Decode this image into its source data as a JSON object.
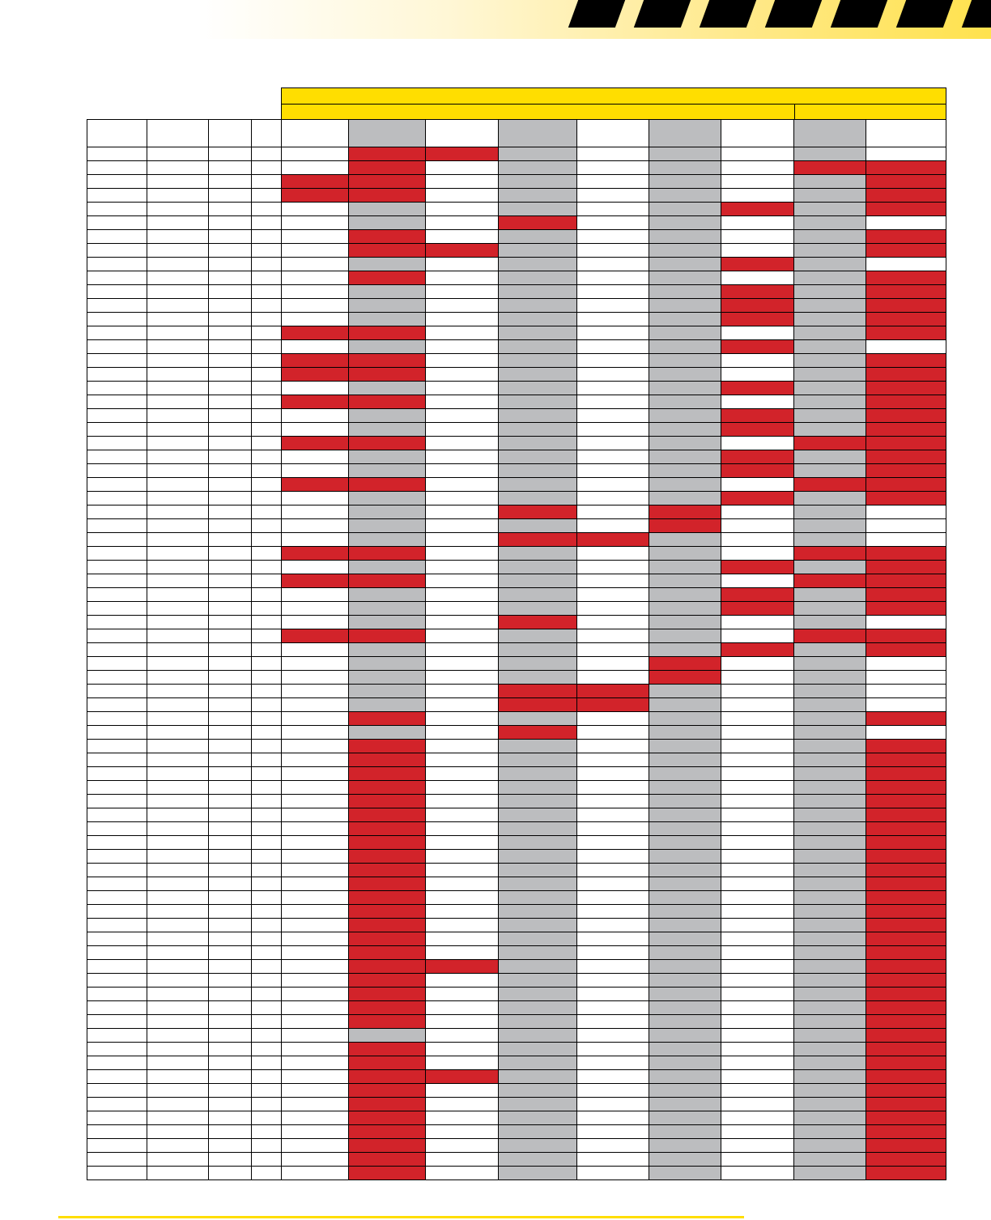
{
  "colors": {
    "accent_yellow": "#ffde00",
    "grey_column": "#bcbdbf",
    "red_mark": "#d2232a",
    "border": "#000000",
    "stripe": "#000000"
  },
  "stripe_count": 7,
  "grid": {
    "column_count": 13,
    "grey_columns": [
      5,
      7,
      9,
      11
    ],
    "row_count": 76,
    "red_cells": {
      "1": [
        5,
        6
      ],
      "2": [
        5,
        11,
        12
      ],
      "3": [
        4,
        5,
        12
      ],
      "4": [
        4,
        5,
        12
      ],
      "5": [
        10,
        12
      ],
      "6": [
        7
      ],
      "7": [
        5,
        12
      ],
      "8": [
        5,
        6,
        12
      ],
      "9": [
        10
      ],
      "10": [
        5,
        12
      ],
      "11": [
        10,
        12
      ],
      "12": [
        10,
        12
      ],
      "13": [
        10,
        12
      ],
      "14": [
        4,
        5,
        12
      ],
      "15": [
        10
      ],
      "16": [
        4,
        5,
        12
      ],
      "17": [
        4,
        5,
        12
      ],
      "18": [
        10,
        12
      ],
      "19": [
        4,
        5,
        12
      ],
      "20": [
        10,
        12
      ],
      "21": [
        10,
        12
      ],
      "22": [
        4,
        5,
        11,
        12
      ],
      "23": [
        10,
        12
      ],
      "24": [
        10,
        12
      ],
      "25": [
        4,
        5,
        11,
        12
      ],
      "26": [
        10,
        12
      ],
      "27": [
        7,
        9
      ],
      "28": [
        9
      ],
      "29": [
        7,
        8
      ],
      "30": [
        4,
        5,
        11,
        12
      ],
      "31": [
        10,
        12
      ],
      "32": [
        4,
        5,
        11,
        12
      ],
      "33": [
        10,
        12
      ],
      "34": [
        10,
        12
      ],
      "35": [
        7
      ],
      "36": [
        4,
        5,
        11,
        12
      ],
      "37": [
        10,
        12
      ],
      "38": [
        9
      ],
      "39": [
        9
      ],
      "40": [
        7,
        8
      ],
      "41": [
        7,
        8
      ],
      "42": [
        5,
        12
      ],
      "43": [
        7
      ],
      "44": [
        5,
        12
      ],
      "45": [
        5,
        12
      ],
      "46": [
        5,
        12
      ],
      "47": [
        5,
        12
      ],
      "48": [
        5,
        12
      ],
      "49": [
        5,
        12
      ],
      "50": [
        5,
        12
      ],
      "51": [
        5,
        12
      ],
      "52": [
        5,
        12
      ],
      "53": [
        5,
        12
      ],
      "54": [
        5,
        12
      ],
      "55": [
        5,
        12
      ],
      "56": [
        5,
        12
      ],
      "57": [
        5,
        12
      ],
      "58": [
        5,
        12
      ],
      "59": [
        5,
        12
      ],
      "60": [
        5,
        6,
        12
      ],
      "61": [
        5,
        12
      ],
      "62": [
        5,
        12
      ],
      "63": [
        5,
        12
      ],
      "64": [
        5,
        12
      ],
      "65": [
        12
      ],
      "66": [
        5,
        12
      ],
      "67": [
        5,
        12
      ],
      "68": [
        5,
        6,
        12
      ],
      "69": [
        5,
        12
      ],
      "70": [
        5,
        12
      ],
      "71": [
        5,
        12
      ],
      "72": [
        5,
        12
      ],
      "73": [
        5,
        12
      ],
      "74": [
        5,
        12
      ],
      "75": [
        5,
        12
      ]
    }
  }
}
